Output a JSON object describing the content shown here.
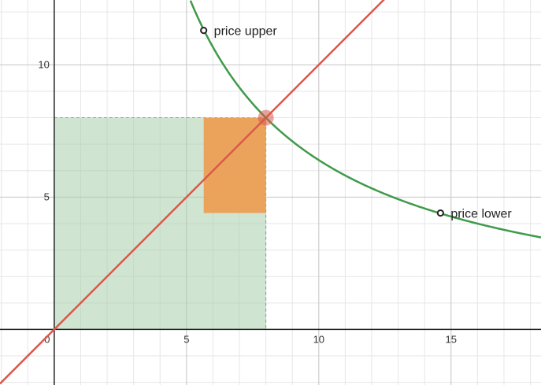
{
  "chart_data": {
    "type": "line",
    "x_range": [
      -2.05,
      18.4
    ],
    "y_range": [
      -2.1,
      12.45
    ],
    "grid": true,
    "x_ticks": [
      {
        "value": 0,
        "label": "0"
      },
      {
        "value": 5,
        "label": "5"
      },
      {
        "value": 10,
        "label": "10"
      },
      {
        "value": 15,
        "label": "15"
      }
    ],
    "y_ticks": [
      {
        "value": 5,
        "label": "5"
      },
      {
        "value": 10,
        "label": "10"
      }
    ],
    "lines": [
      {
        "kind": "linear",
        "slope": 1,
        "intercept": 0,
        "color": "#d9594a"
      }
    ],
    "curves": [
      {
        "kind": "reciprocal",
        "k": 64,
        "x_from": 5.15,
        "x_to": 18.4,
        "color": "#3f9a4a"
      }
    ],
    "regions": [
      {
        "x": [
          0,
          8
        ],
        "y": [
          0,
          8
        ],
        "color": "#a8cfab",
        "opacity": 0.55,
        "border": "#6fae73"
      },
      {
        "x": [
          5.65,
          8
        ],
        "y": [
          4.4,
          8
        ],
        "color": "#ec9f55",
        "opacity": 0.95
      }
    ],
    "points": [
      {
        "x": 5.65,
        "y": 11.3,
        "label": "price upper",
        "color": "#222222"
      },
      {
        "x": 14.6,
        "y": 4.4,
        "label": "price lower",
        "color": "#222222"
      }
    ],
    "highlight_point": {
      "x": 8,
      "y": 8,
      "color": "#d9594a"
    }
  }
}
